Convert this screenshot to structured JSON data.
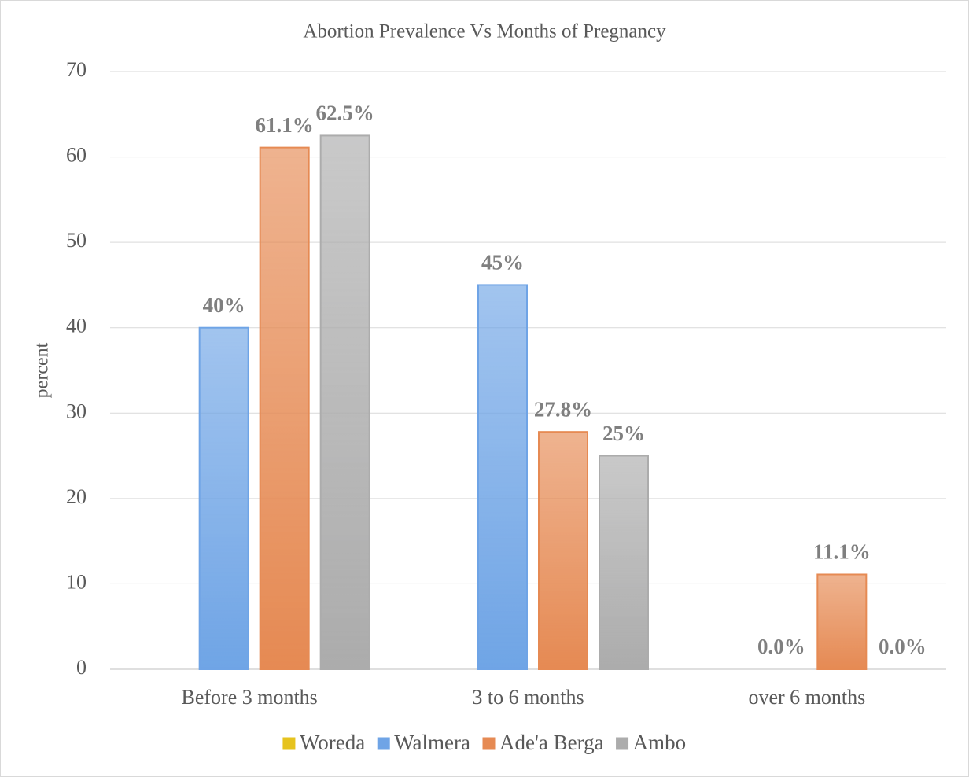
{
  "chart_data": {
    "type": "bar",
    "title": "Abortion Prevalence Vs Months of Pregnancy",
    "y_label": "percent",
    "categories": [
      "Before 3 months",
      "3 to 6 months",
      "over 6 months"
    ],
    "series": [
      {
        "name": "Woreda",
        "color": "#ffd966",
        "values": [
          null,
          null,
          null
        ]
      },
      {
        "name": "Walmera",
        "color": "#8fb4e3",
        "values": [
          40,
          45,
          0
        ],
        "value_labels": [
          "40%",
          "45%",
          "0.0%"
        ]
      },
      {
        "name": "Ade'a Berga",
        "color": "#f6a27c",
        "values": [
          61.1,
          27.8,
          11.1
        ],
        "value_labels": [
          "61.1%",
          "27.8%",
          "11.1%"
        ]
      },
      {
        "name": "Ambo",
        "color": "#bfbfbf",
        "values": [
          62.5,
          25,
          0
        ],
        "value_labels": [
          "62.5%",
          "25%",
          "0.0%"
        ]
      }
    ],
    "ylim": [
      0,
      70
    ],
    "yticks": [
      0,
      10,
      20,
      30,
      40,
      50,
      60,
      70
    ],
    "grid": true,
    "legend": "bottom"
  }
}
